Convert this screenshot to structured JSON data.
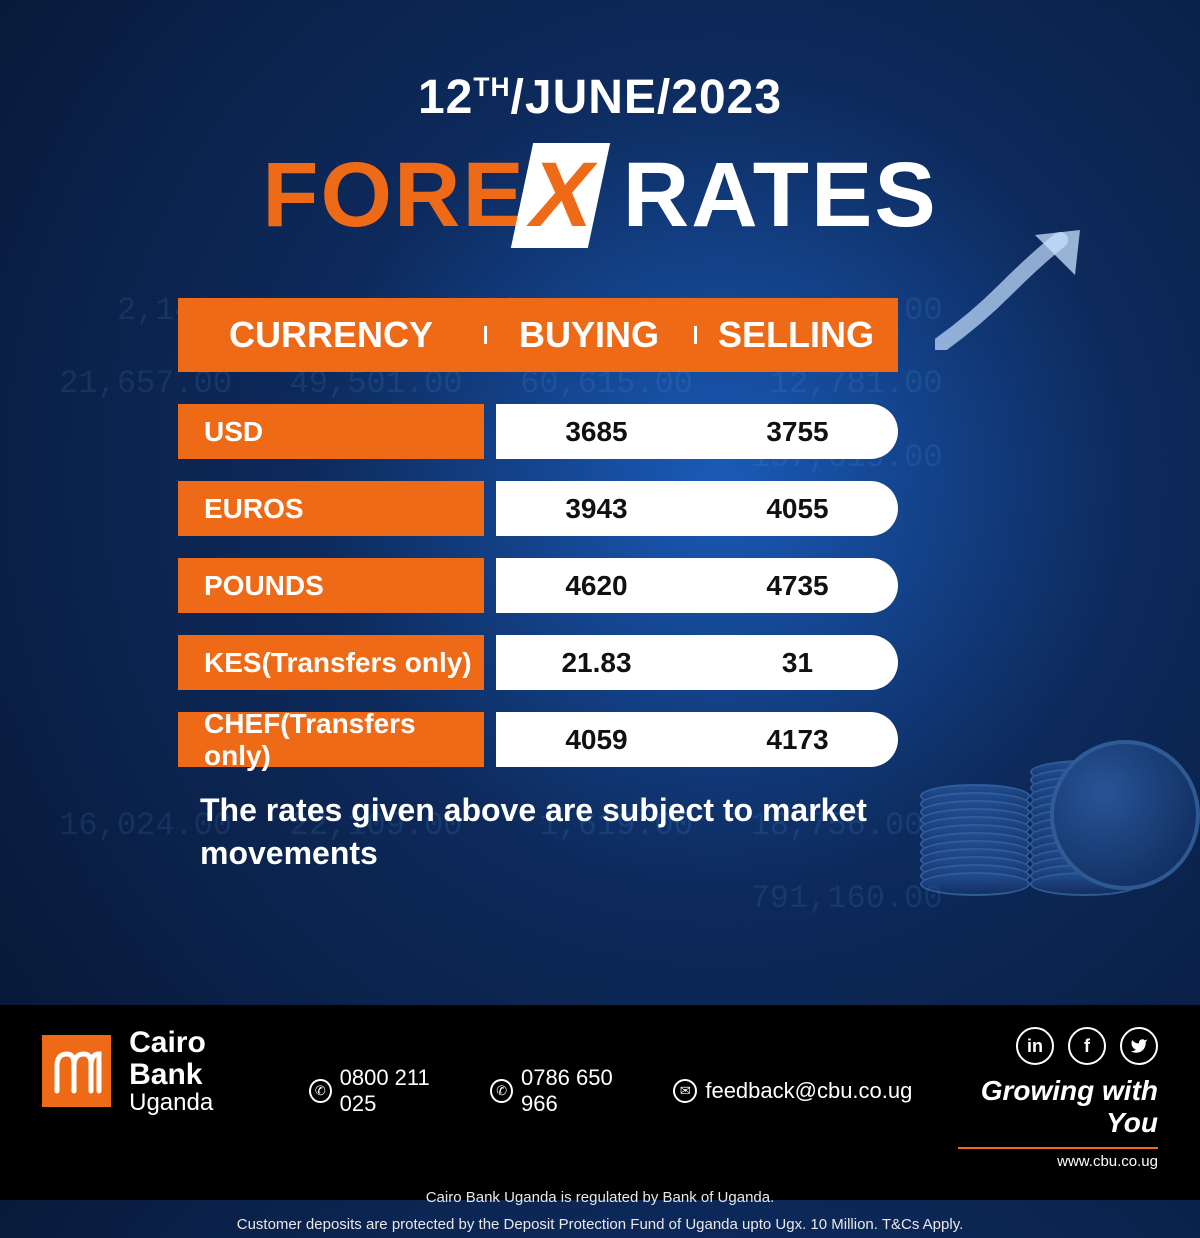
{
  "date": {
    "day": "12",
    "ordinal": "TH",
    "rest": "/JUNE/2023"
  },
  "title": {
    "fore": "FORE",
    "x": "X",
    "rates": " RATES"
  },
  "columns": {
    "c1": "CURRENCY",
    "c2": "BUYING",
    "c3": "SELLING"
  },
  "rows": [
    {
      "label": "USD",
      "buy": "3685",
      "sell": "3755"
    },
    {
      "label": "EUROS",
      "buy": "3943",
      "sell": "4055"
    },
    {
      "label": "POUNDS",
      "buy": "4620",
      "sell": "4735"
    },
    {
      "label": "KES(Transfers only)",
      "buy": "21.83",
      "sell": "31"
    },
    {
      "label": "CHEF(Transfers only)",
      "buy": "4059",
      "sell": "4173"
    }
  ],
  "disclaimer": "The rates given above are subject to market movements",
  "footer": {
    "bank_name": "Cairo Bank",
    "bank_country": "Uganda",
    "phone1": "0800 211 025",
    "phone2": "0786 650 966",
    "email": "feedback@cbu.co.ug",
    "tagline": "Growing with You",
    "website": "www.cbu.co.ug",
    "fine1": "Cairo Bank Uganda is regulated by Bank of Uganda.",
    "fine2": "Customer deposits are protected by the Deposit Protection Fund of Uganda upto Ugx. 10 Million. T&Cs Apply."
  },
  "colors": {
    "orange": "#ef6a17",
    "white": "#ffffff",
    "bg_dark": "#071530",
    "bg_light": "#1a5bb8"
  },
  "bg_numbers_sample": "    2,146.00   1,371.00   12,746.00   16,197.00   13,249.00\n 21,657.00   49,501.00   60,615.00   12,781.00   157,619.00\n    45,318.00   22,108.00   1,619.00   18,756.00\n 16,024.00   22,109.00   791,160.00   7,320.00"
}
